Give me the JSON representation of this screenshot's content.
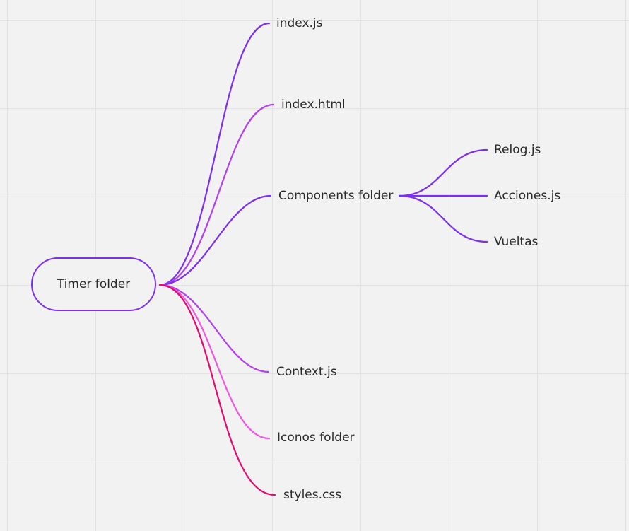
{
  "root": {
    "label": "Timer folder",
    "color": "#7b2ff0"
  },
  "children": [
    {
      "label": "index.js",
      "color": "#7b2ff0"
    },
    {
      "label": "index.html",
      "color": "#b23ff0"
    },
    {
      "label": "Components folder",
      "color": "#7b2ff0",
      "children": [
        {
          "label": "Relog.js",
          "color": "#7b2ff0"
        },
        {
          "label": "Acciones.js",
          "color": "#7b2ff0"
        },
        {
          "label": "Vueltas",
          "color": "#7b2ff0"
        }
      ]
    },
    {
      "label": "Context.js",
      "color": "#b23ff0"
    },
    {
      "label": "Iconos folder",
      "color": "#f055e0"
    },
    {
      "label": "styles.css",
      "color": "#e5096e"
    }
  ]
}
